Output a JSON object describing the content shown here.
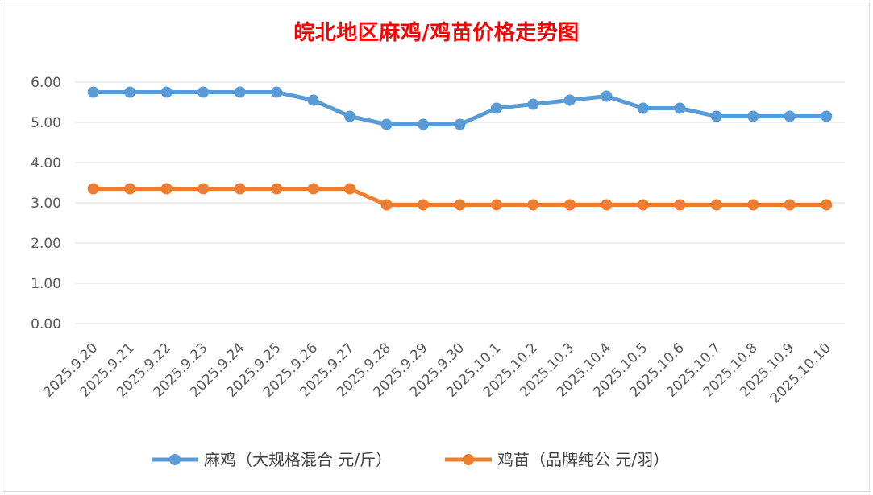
{
  "chart_data": {
    "type": "line",
    "title": "皖北地区麻鸡/鸡苗价格走势图",
    "categories": [
      "2025.9.20",
      "2025.9.21",
      "2025.9.22",
      "2025.9.23",
      "2025.9.24",
      "2025.9.25",
      "2025.9.26",
      "2025.9.27",
      "2025.9.28",
      "2025.9.29",
      "2025.9.30",
      "2025.10.1",
      "2025.10.2",
      "2025.10.3",
      "2025.10.4",
      "2025.10.5",
      "2025.10.6",
      "2025.10.7",
      "2025.10.8",
      "2025.10.9",
      "2025.10.10"
    ],
    "series": [
      {
        "name": "麻鸡（大规格混合 元/斤）",
        "color": "#5b9bd5",
        "values": [
          5.75,
          5.75,
          5.75,
          5.75,
          5.75,
          5.75,
          5.55,
          5.15,
          4.95,
          4.95,
          4.95,
          5.35,
          5.45,
          5.55,
          5.65,
          5.35,
          5.35,
          5.15,
          5.15,
          5.15,
          5.15
        ]
      },
      {
        "name": "鸡苗（品牌纯公 元/羽）",
        "color": "#ed7d31",
        "values": [
          3.35,
          3.35,
          3.35,
          3.35,
          3.35,
          3.35,
          3.35,
          3.35,
          2.95,
          2.95,
          2.95,
          2.95,
          2.95,
          2.95,
          2.95,
          2.95,
          2.95,
          2.95,
          2.95,
          2.95,
          2.95
        ]
      }
    ],
    "ylim": [
      0,
      6
    ],
    "yticks": [
      "0.00",
      "1.00",
      "2.00",
      "3.00",
      "4.00",
      "5.00",
      "6.00"
    ],
    "xlabel": "",
    "ylabel": "",
    "grid": true,
    "legend_position": "bottom"
  }
}
